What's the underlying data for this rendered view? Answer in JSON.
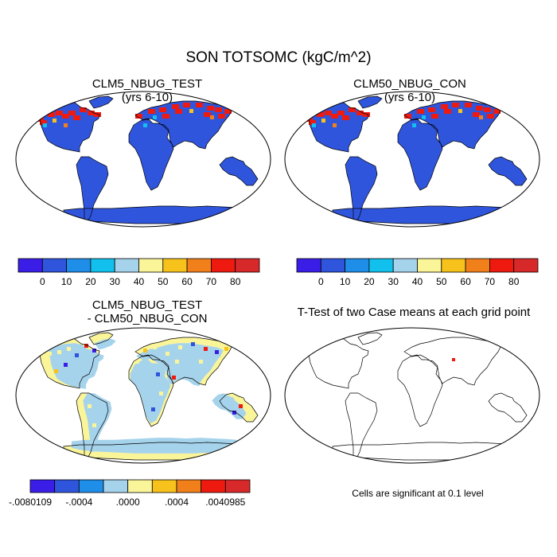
{
  "figure": {
    "title": "SON TOTSOMC (kgC/m^2)",
    "note": "Cells are significant at 0.1 level"
  },
  "panels": [
    {
      "id": "test",
      "title_line1": "CLM5_NBUG_TEST",
      "title_line2": "(yrs 6-10)"
    },
    {
      "id": "control",
      "title_line1": "CLM50_NBUG_CON",
      "title_line2": "(yrs 6-10)"
    },
    {
      "id": "difference",
      "title_line1": "CLM5_NBUG_TEST",
      "title_line2": "- CLM50_NBUG_CON"
    },
    {
      "id": "ttest",
      "title_line1": "T-Test of two Case means at each grid point",
      "title_line2": ""
    }
  ],
  "colorbars": {
    "absolute": {
      "colors": [
        "#3a1ee8",
        "#2f55dd",
        "#1f8ee8",
        "#12c0ee",
        "#a6d3ec",
        "#fbf59a",
        "#f8c21c",
        "#f2801a",
        "#ee1a10",
        "#d8292a"
      ],
      "labels": [
        "0",
        "10",
        "20",
        "30",
        "40",
        "50",
        "60",
        "70",
        "80"
      ]
    },
    "difference": {
      "colors": [
        "#3a1ee8",
        "#2f55dd",
        "#1f8ee8",
        "#a6d3ec",
        "#fbf59a",
        "#f8c21c",
        "#f2801a",
        "#ee1a10",
        "#d8292a"
      ],
      "labels": [
        ".0080109",
        "-.0004",
        ".0000",
        ".0004",
        ".0040985"
      ],
      "label_positions": [
        0,
        2,
        4,
        6,
        8
      ],
      "first_label_prefix": "-"
    }
  },
  "map_colors": {
    "land_main": "#2f55dd",
    "high_lat_red": "#ee1a10",
    "diff_land": "#a6d3ec",
    "diff_coast": "#fbf59a",
    "significant": "#ee1a10"
  }
}
